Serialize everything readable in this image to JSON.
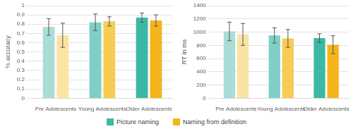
{
  "chart_data": [
    {
      "type": "bar",
      "y_label": "% accuracy",
      "categories": [
        "Pre Adolescents",
        "Young Adolescents",
        "Older Adolescents"
      ],
      "series": [
        {
          "name": "Picture naming",
          "colors": [
            "#a9ddd6",
            "#7fcfc4",
            "#3bb8a6"
          ],
          "values": [
            0.77,
            0.82,
            0.87
          ],
          "errors": [
            0.09,
            0.09,
            0.05
          ]
        },
        {
          "name": "Naming from definition",
          "colors": [
            "#fbe3a3",
            "#f6cc55",
            "#f4b41a"
          ],
          "values": [
            0.68,
            0.83,
            0.84
          ],
          "errors": [
            0.13,
            0.05,
            0.06
          ]
        }
      ],
      "ylim": [
        0,
        1
      ],
      "yticks": [
        0,
        0.1,
        0.2,
        0.3,
        0.4,
        0.5,
        0.6,
        0.7,
        0.8,
        0.9,
        1
      ],
      "grid": true,
      "legend": "bottom"
    },
    {
      "type": "bar",
      "y_label": "RT in ms",
      "categories": [
        "Pre Adolescents",
        "Young Adolescents",
        "Older Adolescents"
      ],
      "series": [
        {
          "name": "Picture naming",
          "colors": [
            "#a9ddd6",
            "#7fcfc4",
            "#3bb8a6"
          ],
          "values": [
            1010,
            950,
            910
          ],
          "errors": [
            140,
            115,
            65
          ]
        },
        {
          "name": "Naming from definition",
          "colors": [
            "#fbe3a3",
            "#f6cc55",
            "#f4b41a"
          ],
          "values": [
            965,
            905,
            810
          ],
          "errors": [
            165,
            135,
            135
          ]
        }
      ],
      "ylim": [
        0,
        1400
      ],
      "yticks": [
        0,
        200,
        400,
        600,
        800,
        1000,
        1200,
        1400
      ],
      "grid": true,
      "legend": "bottom"
    }
  ]
}
